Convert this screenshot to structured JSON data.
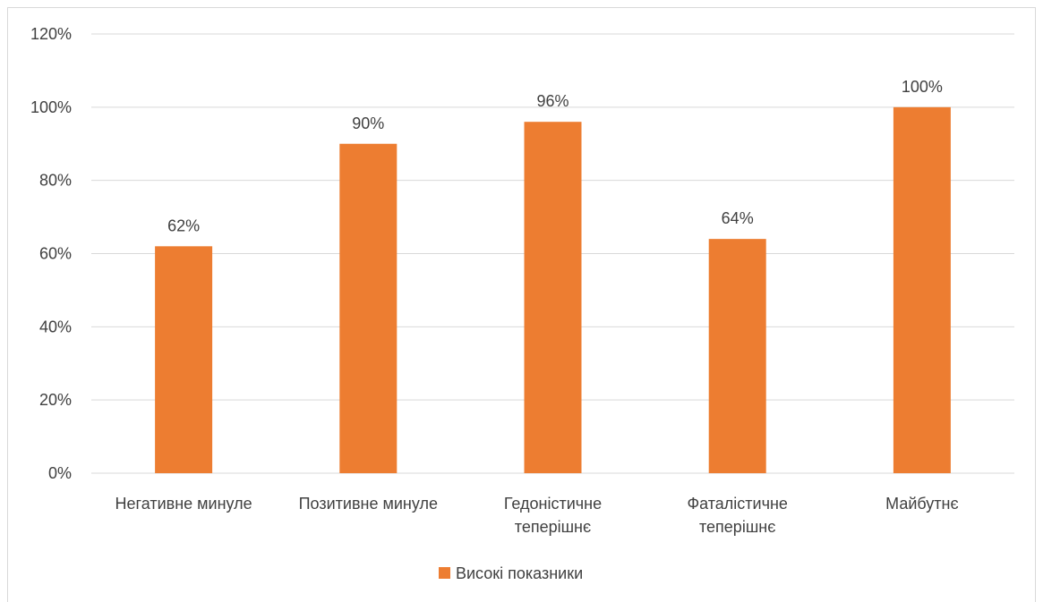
{
  "chart_data": {
    "type": "bar",
    "title": "",
    "xlabel": "",
    "ylabel": "",
    "categories": [
      [
        "Негативне минуле"
      ],
      [
        "Позитивне минуле"
      ],
      [
        "Гедоністичне",
        "теперішнє"
      ],
      [
        "Фаталістичне",
        "теперішнє"
      ],
      [
        "Майбутнє"
      ]
    ],
    "series": [
      {
        "name": "Високі показники",
        "values": [
          62,
          90,
          96,
          64,
          100
        ],
        "data_labels": [
          "62%",
          "90%",
          "96%",
          "64%",
          "100%"
        ]
      }
    ],
    "ylim": [
      0,
      120
    ],
    "yticks": [
      0,
      20,
      40,
      60,
      80,
      100,
      120
    ],
    "ytick_labels": [
      "0%",
      "20%",
      "40%",
      "60%",
      "80%",
      "100%",
      "120%"
    ],
    "grid": true,
    "legend_position": "bottom",
    "colors": {
      "bar": "#ED7D31",
      "grid": "#D9D9D9",
      "text": "#404040",
      "border": "#D9D9D9"
    }
  }
}
